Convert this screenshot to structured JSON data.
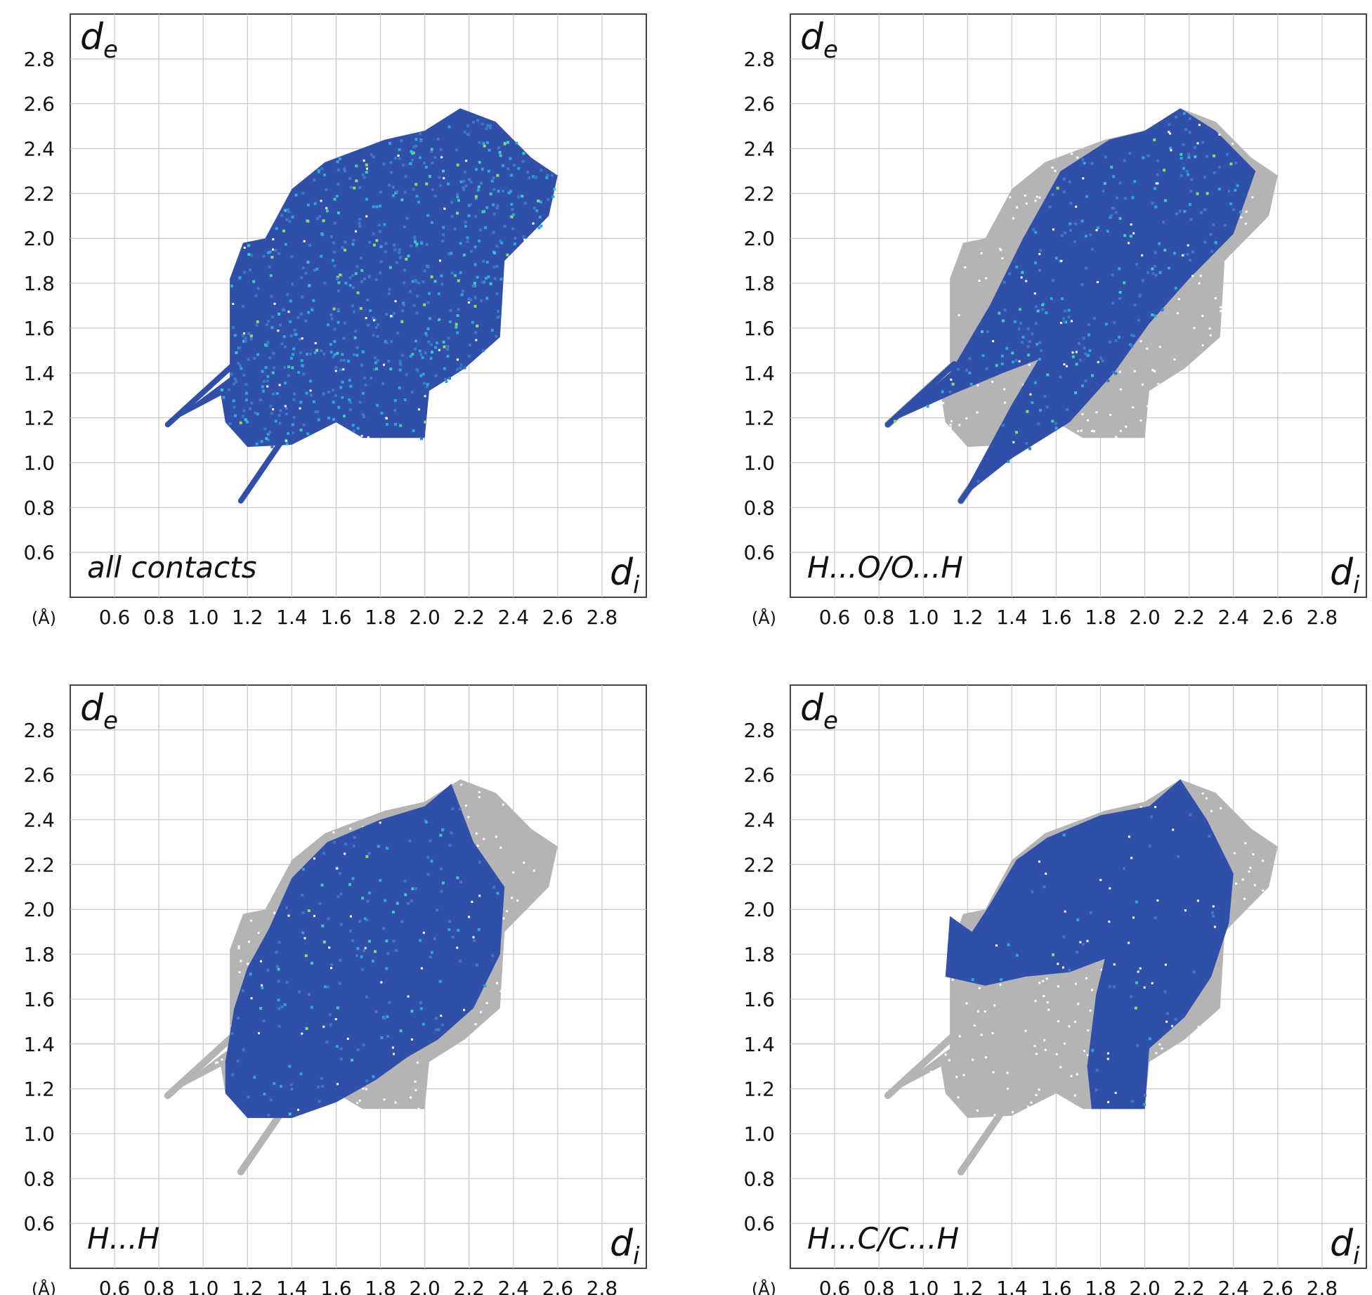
{
  "chart_data": [
    {
      "type": "heatmap",
      "title": "all contacts",
      "xlabel": "d",
      "xlabel_sub": "i",
      "ylabel": "d",
      "ylabel_sub": "e",
      "unit_label": "(Å)",
      "xlim": [
        0.4,
        3.0
      ],
      "ylim": [
        0.4,
        3.0
      ],
      "xticks": [
        "0.6",
        "0.8",
        "1.0",
        "1.2",
        "1.4",
        "1.6",
        "1.8",
        "2.0",
        "2.2",
        "2.4",
        "2.6",
        "2.8"
      ],
      "yticks": [
        "0.6",
        "0.8",
        "1.0",
        "1.2",
        "1.4",
        "1.6",
        "1.8",
        "2.0",
        "2.2",
        "2.4",
        "2.6",
        "2.8"
      ],
      "grid": true,
      "highlight_color": "#2f4fa8",
      "highlighted_region": [
        [
          0.85,
          1.18
        ],
        [
          1.12,
          1.38
        ],
        [
          1.12,
          1.82
        ],
        [
          1.18,
          1.98
        ],
        [
          1.28,
          2.0
        ],
        [
          1.4,
          2.22
        ],
        [
          1.55,
          2.34
        ],
        [
          1.82,
          2.44
        ],
        [
          2.0,
          2.48
        ],
        [
          2.16,
          2.58
        ],
        [
          2.32,
          2.52
        ],
        [
          2.48,
          2.36
        ],
        [
          2.6,
          2.28
        ],
        [
          2.56,
          2.1
        ],
        [
          2.36,
          1.9
        ],
        [
          2.34,
          1.56
        ],
        [
          2.18,
          1.42
        ],
        [
          2.02,
          1.32
        ],
        [
          2.0,
          1.11
        ],
        [
          1.72,
          1.11
        ],
        [
          1.6,
          1.18
        ],
        [
          1.4,
          1.08
        ],
        [
          1.2,
          1.07
        ],
        [
          1.1,
          1.18
        ],
        [
          1.08,
          1.3
        ],
        [
          0.85,
          1.18
        ]
      ],
      "gray_region": [],
      "spikes": [
        [
          [
            0.84,
            1.17
          ],
          [
            1.14,
            1.44
          ]
        ],
        [
          [
            1.17,
            0.83
          ],
          [
            1.44,
            1.22
          ]
        ]
      ]
    },
    {
      "type": "heatmap",
      "title": "H...O/O...H",
      "xlabel": "d",
      "xlabel_sub": "i",
      "ylabel": "d",
      "ylabel_sub": "e",
      "unit_label": "(Å)",
      "xlim": [
        0.4,
        3.0
      ],
      "ylim": [
        0.4,
        3.0
      ],
      "xticks": [
        "0.6",
        "0.8",
        "1.0",
        "1.2",
        "1.4",
        "1.6",
        "1.8",
        "2.0",
        "2.2",
        "2.4",
        "2.6",
        "2.8"
      ],
      "yticks": [
        "0.6",
        "0.8",
        "1.0",
        "1.2",
        "1.4",
        "1.6",
        "1.8",
        "2.0",
        "2.2",
        "2.4",
        "2.6",
        "2.8"
      ],
      "grid": true,
      "highlight_color": "#2f4fa8",
      "highlighted_region": [
        [
          0.85,
          1.18
        ],
        [
          1.12,
          1.4
        ],
        [
          1.3,
          1.7
        ],
        [
          1.45,
          2.0
        ],
        [
          1.62,
          2.3
        ],
        [
          1.84,
          2.44
        ],
        [
          2.0,
          2.48
        ],
        [
          2.16,
          2.58
        ],
        [
          2.32,
          2.48
        ],
        [
          2.5,
          2.3
        ],
        [
          2.4,
          2.02
        ],
        [
          2.2,
          1.82
        ],
        [
          2.02,
          1.62
        ],
        [
          1.86,
          1.4
        ],
        [
          1.66,
          1.18
        ],
        [
          1.4,
          1.02
        ],
        [
          1.17,
          0.84
        ],
        [
          1.4,
          1.26
        ],
        [
          1.52,
          1.46
        ],
        [
          1.36,
          1.4
        ],
        [
          1.12,
          1.3
        ],
        [
          0.85,
          1.18
        ]
      ],
      "gray_region": [
        [
          0.85,
          1.18
        ],
        [
          1.12,
          1.38
        ],
        [
          1.12,
          1.82
        ],
        [
          1.18,
          1.98
        ],
        [
          1.28,
          2.0
        ],
        [
          1.4,
          2.22
        ],
        [
          1.55,
          2.34
        ],
        [
          1.82,
          2.44
        ],
        [
          2.0,
          2.48
        ],
        [
          2.16,
          2.58
        ],
        [
          2.32,
          2.52
        ],
        [
          2.48,
          2.36
        ],
        [
          2.6,
          2.28
        ],
        [
          2.56,
          2.1
        ],
        [
          2.36,
          1.9
        ],
        [
          2.34,
          1.56
        ],
        [
          2.18,
          1.42
        ],
        [
          2.02,
          1.32
        ],
        [
          2.0,
          1.11
        ],
        [
          1.72,
          1.11
        ],
        [
          1.6,
          1.18
        ],
        [
          1.4,
          1.08
        ],
        [
          1.2,
          1.07
        ],
        [
          1.1,
          1.18
        ],
        [
          1.08,
          1.3
        ],
        [
          0.85,
          1.18
        ]
      ],
      "spikes": [
        [
          [
            0.84,
            1.17
          ],
          [
            1.14,
            1.44
          ]
        ],
        [
          [
            1.17,
            0.83
          ],
          [
            1.44,
            1.22
          ]
        ]
      ]
    },
    {
      "type": "heatmap",
      "title": "H...H",
      "xlabel": "d",
      "xlabel_sub": "i",
      "ylabel": "d",
      "ylabel_sub": "e",
      "unit_label": "(Å)",
      "xlim": [
        0.4,
        3.0
      ],
      "ylim": [
        0.4,
        3.0
      ],
      "xticks": [
        "0.6",
        "0.8",
        "1.0",
        "1.2",
        "1.4",
        "1.6",
        "1.8",
        "2.0",
        "2.2",
        "2.4",
        "2.6",
        "2.8"
      ],
      "yticks": [
        "0.6",
        "0.8",
        "1.0",
        "1.2",
        "1.4",
        "1.6",
        "1.8",
        "2.0",
        "2.2",
        "2.4",
        "2.6",
        "2.8"
      ],
      "grid": true,
      "highlight_color": "#2f4fa8",
      "highlighted_region": [
        [
          1.1,
          1.32
        ],
        [
          1.14,
          1.56
        ],
        [
          1.2,
          1.74
        ],
        [
          1.3,
          1.92
        ],
        [
          1.4,
          2.14
        ],
        [
          1.56,
          2.3
        ],
        [
          1.8,
          2.4
        ],
        [
          2.0,
          2.46
        ],
        [
          2.12,
          2.56
        ],
        [
          2.22,
          2.3
        ],
        [
          2.36,
          2.1
        ],
        [
          2.34,
          1.8
        ],
        [
          2.22,
          1.56
        ],
        [
          2.06,
          1.42
        ],
        [
          1.92,
          1.34
        ],
        [
          1.78,
          1.24
        ],
        [
          1.6,
          1.14
        ],
        [
          1.4,
          1.07
        ],
        [
          1.2,
          1.07
        ],
        [
          1.1,
          1.18
        ],
        [
          1.1,
          1.32
        ]
      ],
      "gray_region": [
        [
          0.85,
          1.18
        ],
        [
          1.12,
          1.38
        ],
        [
          1.12,
          1.82
        ],
        [
          1.18,
          1.98
        ],
        [
          1.28,
          2.0
        ],
        [
          1.4,
          2.22
        ],
        [
          1.55,
          2.34
        ],
        [
          1.82,
          2.44
        ],
        [
          2.0,
          2.48
        ],
        [
          2.16,
          2.58
        ],
        [
          2.32,
          2.52
        ],
        [
          2.48,
          2.36
        ],
        [
          2.6,
          2.28
        ],
        [
          2.56,
          2.1
        ],
        [
          2.36,
          1.9
        ],
        [
          2.34,
          1.56
        ],
        [
          2.18,
          1.42
        ],
        [
          2.02,
          1.32
        ],
        [
          2.0,
          1.11
        ],
        [
          1.72,
          1.11
        ],
        [
          1.6,
          1.18
        ],
        [
          1.4,
          1.08
        ],
        [
          1.2,
          1.07
        ],
        [
          1.1,
          1.18
        ],
        [
          1.08,
          1.3
        ],
        [
          0.85,
          1.18
        ]
      ],
      "spikes": [
        [
          [
            0.84,
            1.17
          ],
          [
            1.14,
            1.44
          ]
        ],
        [
          [
            1.17,
            0.83
          ],
          [
            1.44,
            1.22
          ]
        ]
      ]
    },
    {
      "type": "heatmap",
      "title": "H...C/C...H",
      "xlabel": "d",
      "xlabel_sub": "i",
      "ylabel": "d",
      "ylabel_sub": "e",
      "unit_label": "(Å)",
      "xlim": [
        0.4,
        3.0
      ],
      "ylim": [
        0.4,
        3.0
      ],
      "xticks": [
        "0.6",
        "0.8",
        "1.0",
        "1.2",
        "1.4",
        "1.6",
        "1.8",
        "2.0",
        "2.2",
        "2.4",
        "2.6",
        "2.8"
      ],
      "yticks": [
        "0.6",
        "0.8",
        "1.0",
        "1.2",
        "1.4",
        "1.6",
        "1.8",
        "2.0",
        "2.2",
        "2.4",
        "2.6",
        "2.8"
      ],
      "grid": true,
      "highlight_color": "#2f4fa8",
      "highlighted_region": [
        [
          1.1,
          1.7
        ],
        [
          1.12,
          1.97
        ],
        [
          1.22,
          1.9
        ],
        [
          1.3,
          2.02
        ],
        [
          1.42,
          2.22
        ],
        [
          1.56,
          2.32
        ],
        [
          1.8,
          2.42
        ],
        [
          2.02,
          2.46
        ],
        [
          2.16,
          2.58
        ],
        [
          2.28,
          2.4
        ],
        [
          2.4,
          2.16
        ],
        [
          2.38,
          1.94
        ],
        [
          2.3,
          1.7
        ],
        [
          2.18,
          1.52
        ],
        [
          2.02,
          1.38
        ],
        [
          2.0,
          1.11
        ],
        [
          1.76,
          1.11
        ],
        [
          1.74,
          1.3
        ],
        [
          1.78,
          1.62
        ],
        [
          1.82,
          1.78
        ],
        [
          1.66,
          1.72
        ],
        [
          1.46,
          1.7
        ],
        [
          1.28,
          1.66
        ],
        [
          1.1,
          1.7
        ]
      ],
      "gray_region": [
        [
          0.85,
          1.18
        ],
        [
          1.12,
          1.38
        ],
        [
          1.12,
          1.82
        ],
        [
          1.18,
          1.98
        ],
        [
          1.28,
          2.0
        ],
        [
          1.4,
          2.22
        ],
        [
          1.55,
          2.34
        ],
        [
          1.82,
          2.44
        ],
        [
          2.0,
          2.48
        ],
        [
          2.16,
          2.58
        ],
        [
          2.32,
          2.52
        ],
        [
          2.48,
          2.36
        ],
        [
          2.6,
          2.28
        ],
        [
          2.56,
          2.1
        ],
        [
          2.36,
          1.9
        ],
        [
          2.34,
          1.56
        ],
        [
          2.18,
          1.42
        ],
        [
          2.02,
          1.32
        ],
        [
          2.0,
          1.11
        ],
        [
          1.72,
          1.11
        ],
        [
          1.6,
          1.18
        ],
        [
          1.4,
          1.08
        ],
        [
          1.2,
          1.07
        ],
        [
          1.1,
          1.18
        ],
        [
          1.08,
          1.3
        ],
        [
          0.85,
          1.18
        ]
      ],
      "spikes": [
        [
          [
            0.84,
            1.17
          ],
          [
            1.14,
            1.44
          ]
        ],
        [
          [
            1.17,
            0.83
          ],
          [
            1.44,
            1.22
          ]
        ]
      ]
    }
  ]
}
